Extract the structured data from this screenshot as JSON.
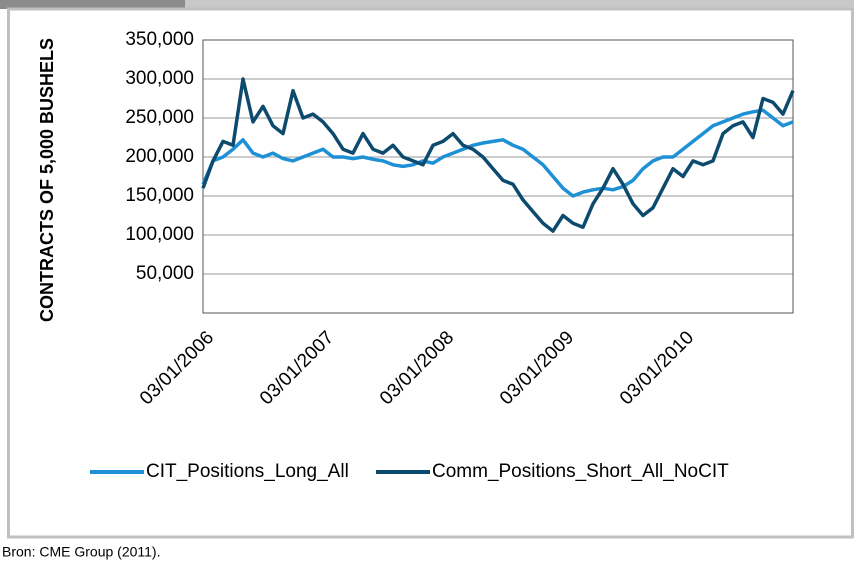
{
  "chart_data": {
    "type": "line",
    "y_axis_label": "CONTRACTS OF 5,000 BUSHELS",
    "source": "Bron: CME Group (2011).",
    "categories": [
      "03/01/2006",
      null,
      null,
      null,
      null,
      null,
      null,
      null,
      null,
      null,
      null,
      null,
      "03/01/2007",
      null,
      null,
      null,
      null,
      null,
      null,
      null,
      null,
      null,
      null,
      null,
      "03/01/2008",
      null,
      null,
      null,
      null,
      null,
      null,
      null,
      null,
      null,
      null,
      null,
      "03/01/2009",
      null,
      null,
      null,
      null,
      null,
      null,
      null,
      null,
      null,
      null,
      null,
      "03/01/2010",
      null,
      null,
      null,
      null,
      null,
      null,
      null,
      null,
      null,
      null,
      null
    ],
    "series": [
      {
        "name": "CIT_Positions_Long_All",
        "color": "#1e90d6",
        "values": [
          165000,
          195000,
          200000,
          210000,
          222000,
          205000,
          200000,
          205000,
          198000,
          195000,
          200000,
          205000,
          210000,
          200000,
          200000,
          198000,
          200000,
          197000,
          195000,
          190000,
          188000,
          190000,
          195000,
          192000,
          200000,
          205000,
          210000,
          215000,
          218000,
          220000,
          222000,
          215000,
          210000,
          200000,
          190000,
          175000,
          160000,
          150000,
          155000,
          158000,
          160000,
          158000,
          162000,
          170000,
          185000,
          195000,
          200000,
          200000,
          210000,
          220000,
          230000,
          240000,
          245000,
          250000,
          255000,
          258000,
          260000,
          250000,
          240000,
          245000
        ]
      },
      {
        "name": "Comm_Positions_Short_All_NoCIT",
        "color": "#0c4a6e",
        "values": [
          160000,
          195000,
          220000,
          215000,
          300000,
          245000,
          265000,
          240000,
          230000,
          285000,
          250000,
          255000,
          245000,
          230000,
          210000,
          205000,
          230000,
          210000,
          205000,
          215000,
          200000,
          195000,
          190000,
          215000,
          220000,
          230000,
          215000,
          210000,
          200000,
          185000,
          170000,
          165000,
          145000,
          130000,
          115000,
          105000,
          125000,
          115000,
          110000,
          140000,
          160000,
          185000,
          165000,
          140000,
          125000,
          135000,
          160000,
          185000,
          175000,
          195000,
          190000,
          195000,
          230000,
          240000,
          245000,
          225000,
          275000,
          270000,
          255000,
          285000
        ]
      }
    ],
    "ylim": [
      0,
      350000
    ],
    "yticks": [
      {
        "value": 50000,
        "label": "50,000"
      },
      {
        "value": 100000,
        "label": "100,000"
      },
      {
        "value": 150000,
        "label": "150,000"
      },
      {
        "value": 200000,
        "label": "200,000"
      },
      {
        "value": 250000,
        "label": "250,000"
      },
      {
        "value": 300000,
        "label": "300,000"
      },
      {
        "value": 350000,
        "label": "350,000"
      }
    ],
    "grid": true
  }
}
